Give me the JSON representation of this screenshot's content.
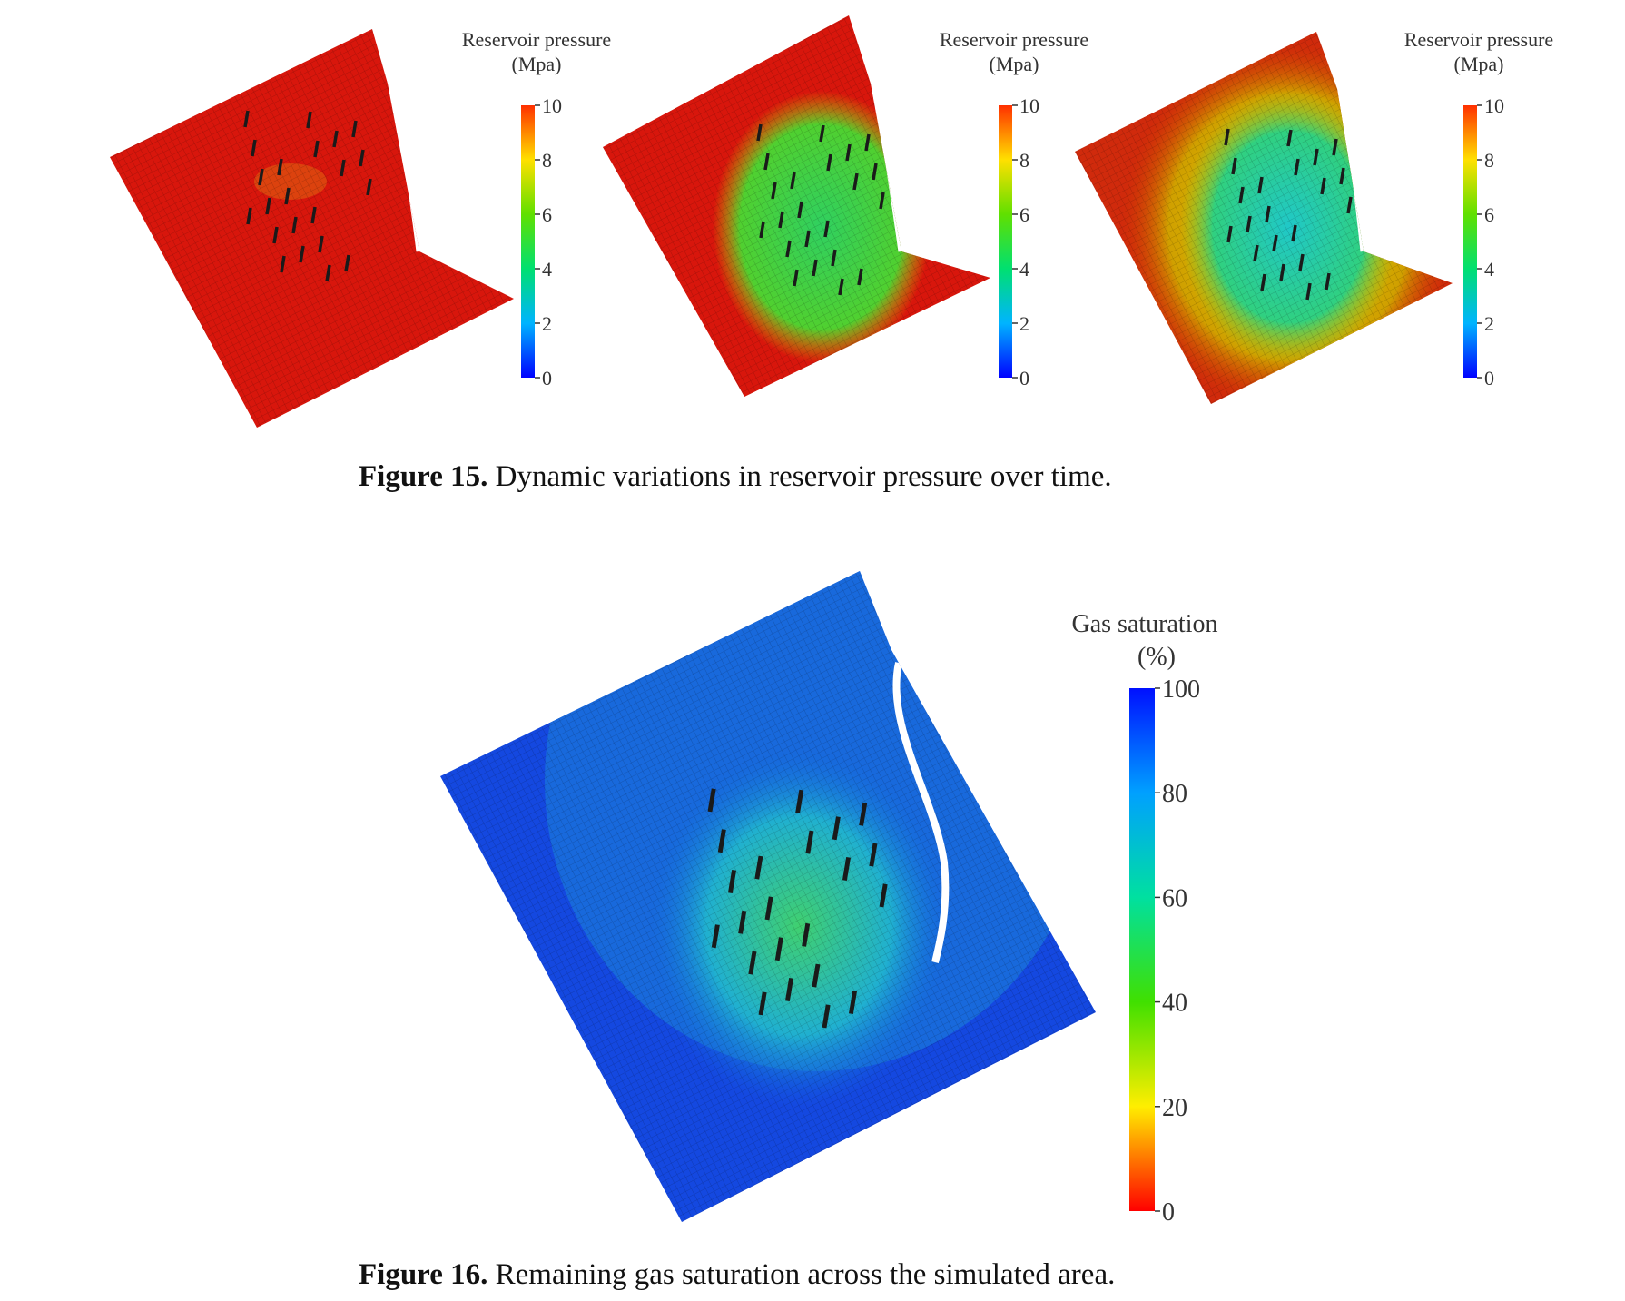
{
  "figures": [
    {
      "panels": [
        {
          "colorbar": {
            "title": "Reservoir pressure",
            "unit": "(Mpa)",
            "ticks": [
              0,
              2,
              4,
              6,
              8,
              10
            ]
          }
        },
        {
          "colorbar": {
            "title": "Reservoir pressure",
            "unit": "(Mpa)",
            "ticks": [
              0,
              2,
              4,
              6,
              8,
              10
            ]
          }
        },
        {
          "colorbar": {
            "title": "Reservoir pressure",
            "unit": "(Mpa)",
            "ticks": [
              0,
              2,
              4,
              6,
              8,
              10
            ]
          }
        }
      ],
      "caption": {
        "label": "Figure 15.",
        "text": "Dynamic variations in reservoir pressure over time."
      }
    },
    {
      "panels": [
        {
          "colorbar": {
            "title": "Gas saturation",
            "unit": "(%)",
            "ticks": [
              0,
              20,
              40,
              60,
              80,
              100
            ]
          }
        }
      ],
      "caption": {
        "label": "Figure 16.",
        "text": "Remaining gas saturation across the simulated area."
      }
    }
  ]
}
